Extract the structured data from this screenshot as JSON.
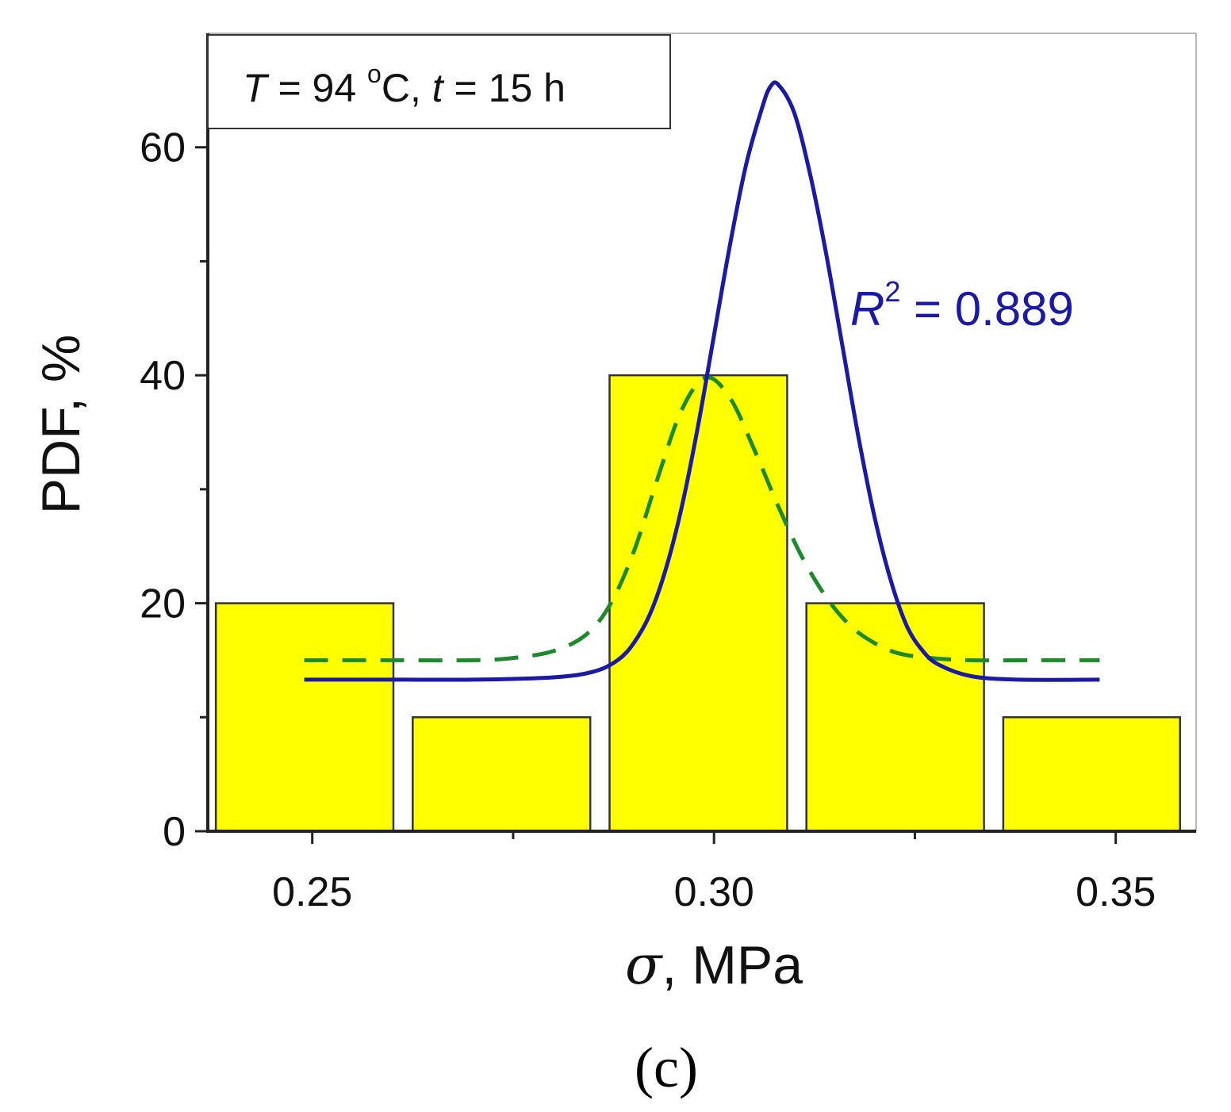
{
  "chart_data": {
    "type": "bar",
    "subtype": "histogram-with-fits",
    "xlabel": {
      "symbol": "σ",
      "rest": ", MPa"
    },
    "ylabel": "PDF, %",
    "xlim": [
      0.237,
      0.36
    ],
    "ylim": [
      0,
      70
    ],
    "x_ticks": [
      {
        "value": 0.25,
        "label": "0.25"
      },
      {
        "value": 0.3,
        "label": "0.30"
      },
      {
        "value": 0.35,
        "label": "0.35"
      }
    ],
    "x_minor_ticks": [
      0.275,
      0.325
    ],
    "y_ticks": [
      {
        "value": 0,
        "label": "0"
      },
      {
        "value": 20,
        "label": "20"
      },
      {
        "value": 40,
        "label": "40"
      },
      {
        "value": 60,
        "label": "60"
      }
    ],
    "y_minor_ticks": [
      10,
      30,
      50
    ],
    "bars": [
      {
        "x0": 0.238,
        "x1": 0.2601,
        "value": 20
      },
      {
        "x0": 0.2625,
        "x1": 0.2846,
        "value": 10
      },
      {
        "x0": 0.287,
        "x1": 0.3091,
        "value": 40
      },
      {
        "x0": 0.3115,
        "x1": 0.3336,
        "value": 20
      },
      {
        "x0": 0.336,
        "x1": 0.358,
        "value": 10
      }
    ],
    "series": [
      {
        "name": "fit-solid",
        "style": "solid",
        "color": "#1a1aa6",
        "x": [
          0.249,
          0.26,
          0.27,
          0.28,
          0.285,
          0.288,
          0.29,
          0.292,
          0.294,
          0.296,
          0.298,
          0.3,
          0.302,
          0.304,
          0.306,
          0.307,
          0.308,
          0.31,
          0.312,
          0.314,
          0.316,
          0.318,
          0.32,
          0.322,
          0.324,
          0.326,
          0.328,
          0.332,
          0.338,
          0.348
        ],
        "y": [
          13.3,
          13.3,
          13.3,
          13.5,
          14.0,
          15.0,
          16.5,
          19.0,
          23.0,
          28.5,
          35.5,
          43.5,
          51.5,
          58.5,
          63.5,
          65.3,
          65.5,
          63.0,
          57.5,
          50.5,
          42.5,
          34.5,
          27.5,
          22.0,
          18.0,
          15.8,
          14.6,
          13.6,
          13.3,
          13.3
        ]
      },
      {
        "name": "fit-dashed",
        "style": "dashed",
        "color": "#1a8a2a",
        "x": [
          0.249,
          0.26,
          0.27,
          0.275,
          0.28,
          0.284,
          0.287,
          0.29,
          0.293,
          0.296,
          0.299,
          0.302,
          0.305,
          0.308,
          0.311,
          0.314,
          0.317,
          0.32,
          0.323,
          0.327,
          0.332,
          0.34,
          0.348
        ],
        "y": [
          15.0,
          15.0,
          15.0,
          15.2,
          15.8,
          17.2,
          19.8,
          24.5,
          31.0,
          37.0,
          39.8,
          38.0,
          33.5,
          28.5,
          24.0,
          20.5,
          18.0,
          16.5,
          15.6,
          15.2,
          15.0,
          15.0,
          15.0
        ]
      }
    ],
    "annotation_box": {
      "T_symbol": "T",
      "T_eq": " = 94 ",
      "deg": "o",
      "T_unit": "C, ",
      "t_symbol": "t",
      "t_eq": " = 15 h"
    },
    "fit_label": {
      "R": "R",
      "sup": "2",
      "rest": " = 0.889",
      "color": "#1a1aa6"
    },
    "caption": "(c)",
    "bar_color": "#ffff00"
  }
}
